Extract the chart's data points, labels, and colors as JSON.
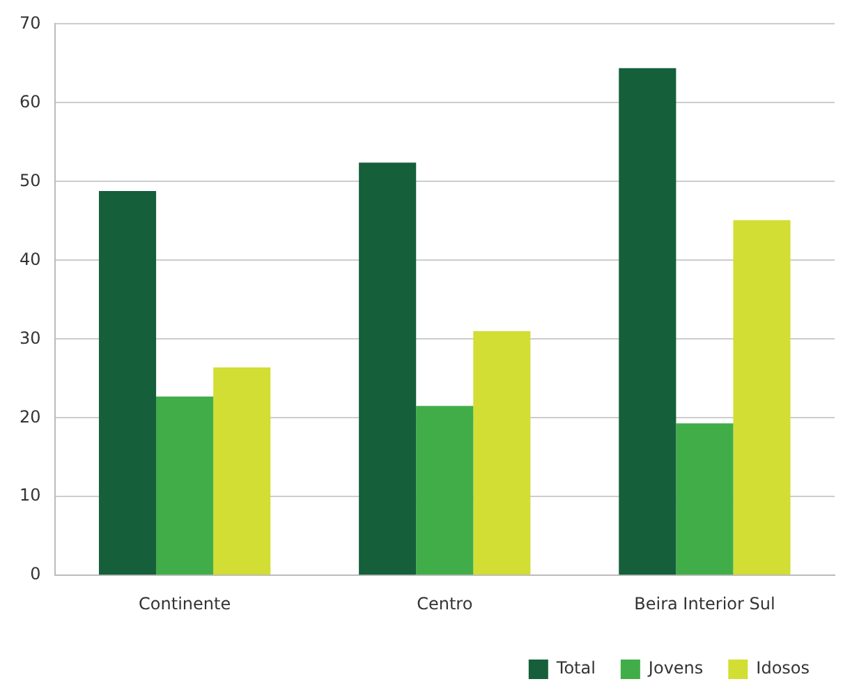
{
  "chart_data": {
    "type": "bar",
    "categories": [
      "Continente",
      "Centro",
      "Beira Interior Sul"
    ],
    "series": [
      {
        "name": "Total",
        "color": "#155f3a",
        "values": [
          48.8,
          52.4,
          64.4
        ]
      },
      {
        "name": "Jovens",
        "color": "#41ad49",
        "values": [
          22.7,
          21.5,
          19.3
        ]
      },
      {
        "name": "Idosos",
        "color": "#d2de34",
        "values": [
          26.4,
          31.0,
          45.1
        ]
      }
    ],
    "ylim": [
      0,
      70
    ],
    "yticks": [
      0,
      10,
      20,
      30,
      40,
      50,
      60,
      70
    ],
    "grid": "y",
    "legend": "bottom right"
  }
}
